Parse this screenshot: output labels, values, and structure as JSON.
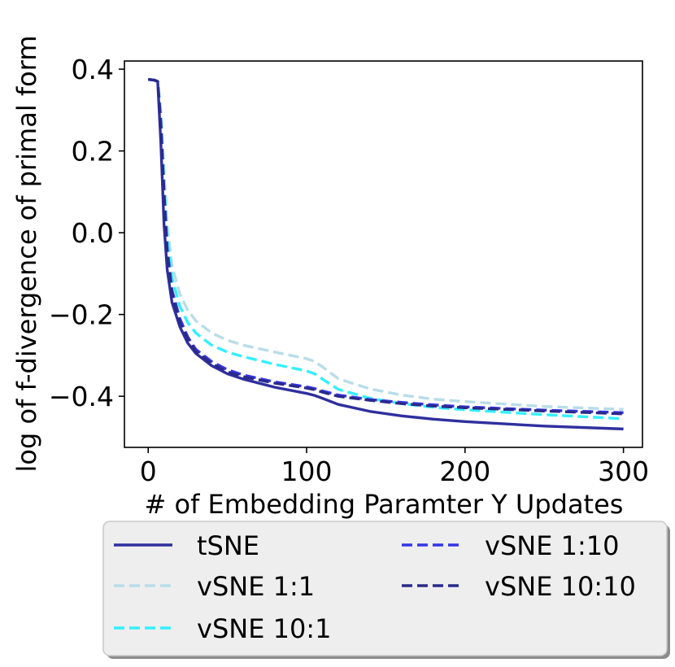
{
  "chart_data": {
    "type": "line",
    "xlabel": "# of Embedding Paramter Y Updates",
    "ylabel": "log of f-divergence of primal form",
    "xlim": [
      -15,
      312
    ],
    "ylim": [
      -0.525,
      0.42
    ],
    "xticks": [
      0,
      100,
      200,
      300
    ],
    "xtick_labels": [
      "0",
      "100",
      "200",
      "300"
    ],
    "yticks": [
      0.4,
      0.2,
      0.0,
      -0.2,
      -0.4
    ],
    "ytick_labels": [
      "0.4",
      "0.2",
      "0.0",
      "−0.2",
      "−0.4"
    ],
    "legend_position": "below",
    "series": [
      {
        "name": "tSNE",
        "color": "#2f2f9e",
        "dash": "solid",
        "x": [
          0,
          4,
          6,
          8,
          10,
          12,
          15,
          20,
          25,
          30,
          40,
          50,
          60,
          80,
          100,
          105,
          110,
          120,
          140,
          160,
          180,
          200,
          250,
          300
        ],
        "values": [
          0.375,
          0.373,
          0.37,
          0.22,
          0.02,
          -0.09,
          -0.17,
          -0.23,
          -0.27,
          -0.295,
          -0.325,
          -0.345,
          -0.358,
          -0.378,
          -0.393,
          -0.398,
          -0.405,
          -0.42,
          -0.437,
          -0.448,
          -0.456,
          -0.462,
          -0.473,
          -0.48
        ]
      },
      {
        "name": "vSNE 1:1",
        "color": "#b8dde8",
        "dash": "dashed",
        "x": [
          0,
          4,
          6,
          8,
          10,
          12,
          15,
          20,
          25,
          30,
          40,
          50,
          60,
          80,
          100,
          105,
          110,
          120,
          140,
          160,
          180,
          200,
          250,
          300
        ],
        "values": [
          0.375,
          0.373,
          0.37,
          0.3,
          0.15,
          0.02,
          -0.08,
          -0.15,
          -0.19,
          -0.215,
          -0.245,
          -0.263,
          -0.275,
          -0.292,
          -0.308,
          -0.315,
          -0.328,
          -0.357,
          -0.382,
          -0.397,
          -0.407,
          -0.413,
          -0.425,
          -0.432
        ]
      },
      {
        "name": "vSNE 10:1",
        "color": "#33f0ff",
        "dash": "dashed",
        "x": [
          0,
          4,
          6,
          8,
          10,
          12,
          15,
          20,
          25,
          30,
          40,
          50,
          60,
          80,
          100,
          105,
          110,
          120,
          140,
          160,
          180,
          200,
          250,
          300
        ],
        "values": [
          0.375,
          0.373,
          0.37,
          0.28,
          0.12,
          -0.01,
          -0.11,
          -0.18,
          -0.22,
          -0.245,
          -0.275,
          -0.292,
          -0.303,
          -0.322,
          -0.338,
          -0.345,
          -0.358,
          -0.383,
          -0.405,
          -0.418,
          -0.427,
          -0.433,
          -0.445,
          -0.455
        ]
      },
      {
        "name": "vSNE 1:10",
        "color": "#3535e8",
        "dash": "dashed",
        "x": [
          0,
          4,
          6,
          8,
          10,
          12,
          15,
          20,
          25,
          30,
          40,
          50,
          60,
          80,
          100,
          105,
          110,
          120,
          140,
          160,
          180,
          200,
          250,
          300
        ],
        "values": [
          0.375,
          0.373,
          0.37,
          0.27,
          0.1,
          -0.04,
          -0.14,
          -0.21,
          -0.255,
          -0.285,
          -0.315,
          -0.335,
          -0.348,
          -0.365,
          -0.377,
          -0.381,
          -0.387,
          -0.397,
          -0.408,
          -0.415,
          -0.421,
          -0.426,
          -0.434,
          -0.44
        ]
      },
      {
        "name": "vSNE 10:10",
        "color": "#2a2a8a",
        "dash": "dashed",
        "x": [
          0,
          4,
          6,
          8,
          10,
          12,
          15,
          20,
          25,
          30,
          40,
          50,
          60,
          80,
          100,
          105,
          110,
          120,
          140,
          160,
          180,
          200,
          250,
          300
        ],
        "values": [
          0.375,
          0.373,
          0.37,
          0.26,
          0.09,
          -0.05,
          -0.15,
          -0.22,
          -0.26,
          -0.29,
          -0.32,
          -0.34,
          -0.352,
          -0.368,
          -0.38,
          -0.384,
          -0.39,
          -0.4,
          -0.41,
          -0.418,
          -0.424,
          -0.428,
          -0.436,
          -0.443
        ]
      }
    ]
  }
}
